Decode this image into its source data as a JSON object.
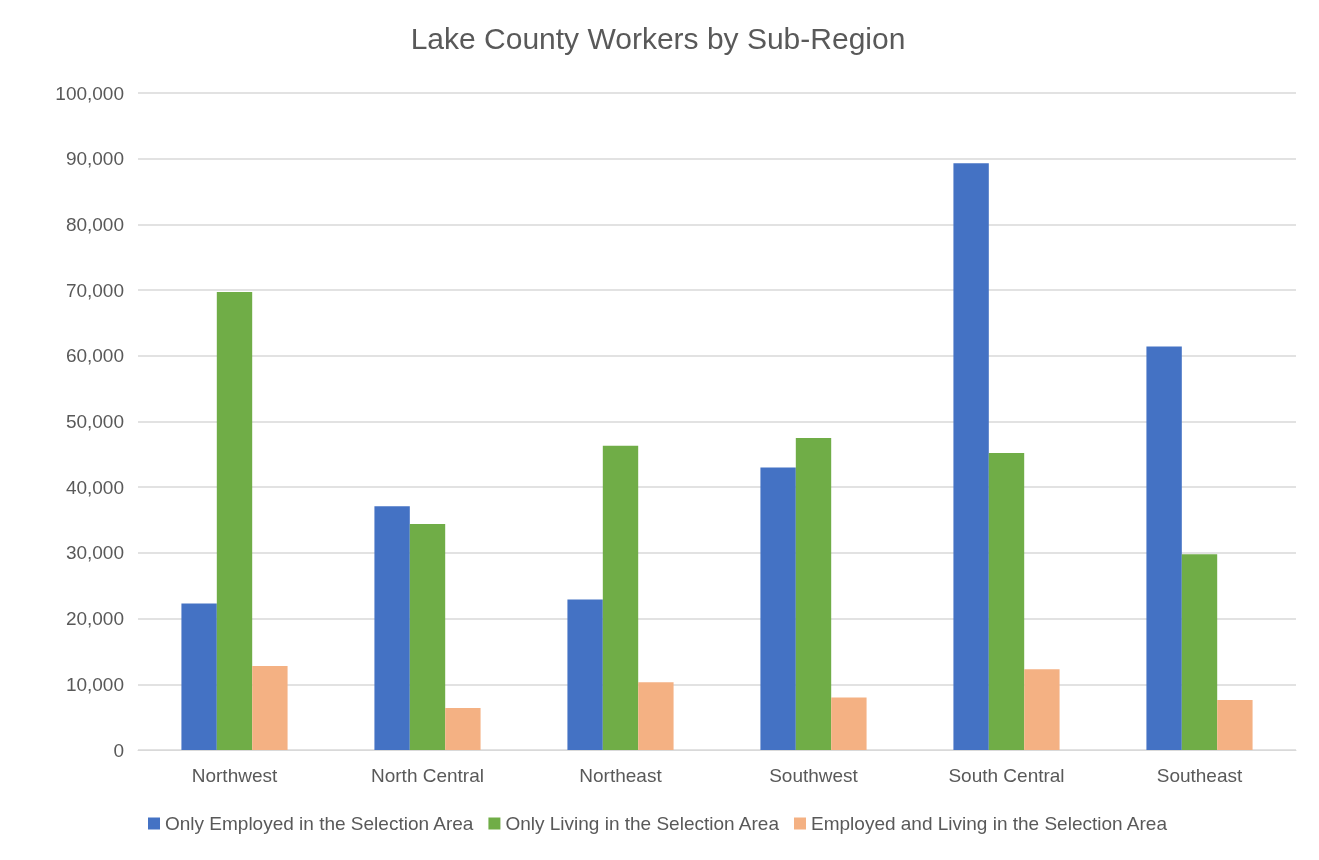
{
  "chart_data": {
    "type": "bar",
    "title": "Lake County Workers by Sub-Region",
    "categories": [
      "Northwest",
      "North Central",
      "Northeast",
      "Southwest",
      "South Central",
      "Southeast"
    ],
    "series": [
      {
        "name": "Only Employed in the Selection Area",
        "color": "#4472c4",
        "values": [
          22300,
          37100,
          22900,
          43000,
          89300,
          61400
        ]
      },
      {
        "name": "Only Living in the Selection Area",
        "color": "#70ad47",
        "values": [
          69700,
          34400,
          46300,
          47500,
          45200,
          29800
        ]
      },
      {
        "name": "Employed and Living in the Selection Area",
        "color": "#f4b183",
        "values": [
          12800,
          6400,
          10300,
          8000,
          12300,
          7600
        ]
      }
    ],
    "ylim": [
      0,
      100000
    ],
    "yticks": [
      0,
      {
        "value": 10000,
        "label": "10,000"
      },
      {
        "value": 20000,
        "label": "20,000"
      },
      {
        "value": 30000,
        "label": "30,000"
      },
      {
        "value": 40000,
        "label": "40,000"
      },
      {
        "value": 50000,
        "label": "50,000"
      },
      {
        "value": 60000,
        "label": "60,000"
      },
      {
        "value": 70000,
        "label": "70,000"
      },
      {
        "value": 80000,
        "label": "80,000"
      },
      {
        "value": 90000,
        "label": "90,000"
      },
      {
        "value": 100000,
        "label": "100,000"
      }
    ],
    "grid": "y",
    "legend": "bottom"
  }
}
